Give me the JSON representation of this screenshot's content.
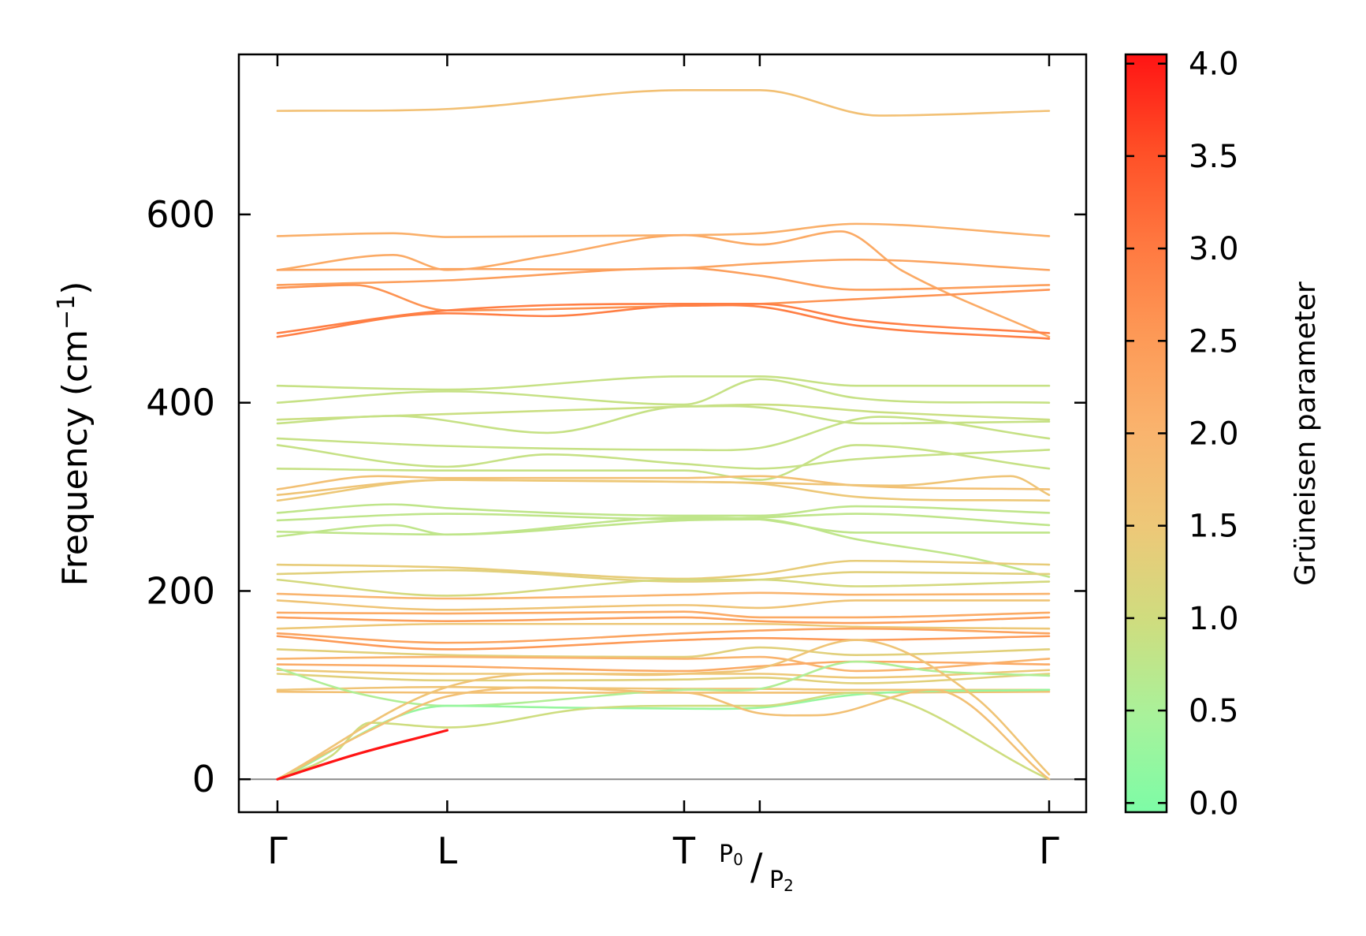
{
  "chart_data": {
    "type": "line",
    "title": "",
    "xlabel": "",
    "ylabel": "Frequency (cm",
    "ylabel_superscript": "−1",
    "ylabel_close": ")",
    "ylim": [
      -35,
      770
    ],
    "yticks": [
      0,
      200,
      400,
      600
    ],
    "x_range": [
      0,
      1
    ],
    "high_symmetry_points": [
      {
        "label": "Γ",
        "x": 0.0
      },
      {
        "label": "L",
        "x": 0.22
      },
      {
        "label": "T",
        "x": 0.527
      },
      {
        "label": "",
        "x": 0.625,
        "split_label": {
          "top": "P",
          "top_index": "0",
          "sep": "/",
          "bottom": "P",
          "bottom_index": "2"
        }
      },
      {
        "label": "Γ",
        "x": 1.0
      }
    ],
    "zero_line": 0,
    "colorbar": {
      "label": "Grüneisen parameter",
      "range": [
        -0.05,
        4.05
      ],
      "ticks": [
        0.0,
        0.5,
        1.0,
        1.5,
        2.0,
        2.5,
        3.0,
        3.5,
        4.0
      ],
      "tick_labels": [
        "0.0",
        "0.5",
        "1.0",
        "1.5",
        "2.0",
        "2.5",
        "3.0",
        "3.5",
        "4.0"
      ],
      "colormap": [
        "#7dfca6",
        "#a8f29b",
        "#cedd7f",
        "#edc878",
        "#f9b46e",
        "#fd9a57",
        "#ff7840",
        "#ff4e26",
        "#ff1414"
      ]
    },
    "series": [
      {
        "x": [
          0,
          0.22,
          0.527,
          0.625,
          0.78,
          1
        ],
        "y": [
          710,
          712,
          732,
          732,
          705,
          710
        ],
        "gamma": 1.7
      },
      {
        "x": [
          0,
          0.15,
          0.22,
          0.527,
          0.625,
          0.75,
          1
        ],
        "y": [
          577,
          580,
          576,
          578,
          580,
          590,
          577
        ],
        "gamma": 2.1
      },
      {
        "x": [
          0,
          0.15,
          0.22,
          0.35,
          0.527,
          0.625,
          0.73,
          0.81,
          1
        ],
        "y": [
          541,
          557,
          541,
          556,
          578,
          568,
          582,
          540,
          470
        ],
        "gamma": 2.2
      },
      {
        "x": [
          0,
          0.22,
          0.527,
          0.625,
          0.75,
          1
        ],
        "y": [
          541,
          542,
          543,
          548,
          552,
          541
        ],
        "gamma": 2.3
      },
      {
        "x": [
          0,
          0.22,
          0.527,
          0.625,
          0.75,
          1
        ],
        "y": [
          525,
          530,
          543,
          535,
          520,
          525
        ],
        "gamma": 2.4
      },
      {
        "x": [
          0,
          0.1,
          0.22,
          0.527,
          0.625,
          0.75,
          1
        ],
        "y": [
          522,
          525,
          498,
          503,
          505,
          510,
          520
        ],
        "gamma": 2.6
      },
      {
        "x": [
          0,
          0.22,
          0.527,
          0.625,
          0.75,
          1
        ],
        "y": [
          474,
          498,
          505,
          505,
          488,
          474
        ],
        "gamma": 2.9
      },
      {
        "x": [
          0,
          0.22,
          0.35,
          0.527,
          0.625,
          0.75,
          1
        ],
        "y": [
          470,
          495,
          492,
          503,
          502,
          482,
          468
        ],
        "gamma": 2.9
      },
      {
        "x": [
          0,
          0.22,
          0.527,
          0.625,
          0.75,
          1
        ],
        "y": [
          418,
          414,
          428,
          428,
          418,
          418
        ],
        "gamma": 0.9
      },
      {
        "x": [
          0,
          0.22,
          0.527,
          0.625,
          0.75,
          1
        ],
        "y": [
          400,
          412,
          398,
          425,
          405,
          400
        ],
        "gamma": 0.9
      },
      {
        "x": [
          0,
          0.22,
          0.527,
          0.625,
          0.78,
          1
        ],
        "y": [
          382,
          388,
          396,
          398,
          390,
          382
        ],
        "gamma": 0.95
      },
      {
        "x": [
          0,
          0.15,
          0.35,
          0.527,
          0.625,
          0.76,
          1
        ],
        "y": [
          378,
          386,
          368,
          396,
          395,
          378,
          380
        ],
        "gamma": 0.9
      },
      {
        "x": [
          0,
          0.22,
          0.527,
          0.625,
          0.78,
          1
        ],
        "y": [
          362,
          354,
          350,
          352,
          385,
          362
        ],
        "gamma": 0.9
      },
      {
        "x": [
          0,
          0.22,
          0.35,
          0.527,
          0.625,
          0.75,
          1
        ],
        "y": [
          355,
          332,
          345,
          335,
          330,
          340,
          350
        ],
        "gamma": 0.9
      },
      {
        "x": [
          0,
          0.22,
          0.527,
          0.625,
          0.75,
          1
        ],
        "y": [
          330,
          328,
          328,
          318,
          355,
          330
        ],
        "gamma": 0.9
      },
      {
        "x": [
          0,
          0.13,
          0.22,
          0.527,
          0.625,
          0.75,
          1
        ],
        "y": [
          308,
          322,
          320,
          320,
          322,
          312,
          308
        ],
        "gamma": 1.7
      },
      {
        "x": [
          0,
          0.22,
          0.527,
          0.625,
          0.8,
          0.95,
          1
        ],
        "y": [
          302,
          318,
          316,
          315,
          312,
          322,
          302
        ],
        "gamma": 1.6
      },
      {
        "x": [
          0,
          0.22,
          0.527,
          0.625,
          0.75,
          1
        ],
        "y": [
          296,
          318,
          316,
          314,
          300,
          296
        ],
        "gamma": 1.5
      },
      {
        "x": [
          0,
          0.15,
          0.22,
          0.527,
          0.625,
          0.75,
          1
        ],
        "y": [
          283,
          292,
          288,
          280,
          280,
          290,
          283
        ],
        "gamma": 0.8
      },
      {
        "x": [
          0,
          0.22,
          0.527,
          0.625,
          0.75,
          1
        ],
        "y": [
          275,
          282,
          276,
          278,
          282,
          270
        ],
        "gamma": 0.8
      },
      {
        "x": [
          0,
          0.22,
          0.527,
          0.625,
          0.75,
          1
        ],
        "y": [
          263,
          260,
          278,
          276,
          262,
          262
        ],
        "gamma": 0.8
      },
      {
        "x": [
          0,
          0.15,
          0.22,
          0.527,
          0.625,
          0.75,
          0.9,
          1
        ],
        "y": [
          258,
          270,
          260,
          275,
          276,
          255,
          235,
          215
        ],
        "gamma": 0.8
      },
      {
        "x": [
          0,
          0.22,
          0.527,
          0.625,
          0.75,
          1
        ],
        "y": [
          228,
          225,
          213,
          218,
          232,
          228
        ],
        "gamma": 1.4
      },
      {
        "x": [
          0,
          0.22,
          0.527,
          0.625,
          0.75,
          1
        ],
        "y": [
          218,
          222,
          210,
          212,
          220,
          218
        ],
        "gamma": 1.3
      },
      {
        "x": [
          0,
          0.22,
          0.527,
          0.625,
          0.75,
          1
        ],
        "y": [
          212,
          195,
          212,
          212,
          205,
          210
        ],
        "gamma": 1.1
      },
      {
        "x": [
          0,
          0.22,
          0.527,
          0.625,
          0.75,
          1
        ],
        "y": [
          197,
          192,
          196,
          198,
          196,
          197
        ],
        "gamma": 2.0
      },
      {
        "x": [
          0,
          0.22,
          0.527,
          0.625,
          0.75,
          1
        ],
        "y": [
          190,
          180,
          185,
          182,
          190,
          190
        ],
        "gamma": 1.6
      },
      {
        "x": [
          0,
          0.22,
          0.527,
          0.625,
          0.75,
          1
        ],
        "y": [
          177,
          176,
          178,
          172,
          172,
          177
        ],
        "gamma": 2.2
      },
      {
        "x": [
          0,
          0.22,
          0.527,
          0.625,
          0.75,
          1
        ],
        "y": [
          172,
          168,
          172,
          168,
          166,
          172
        ],
        "gamma": 2.4
      },
      {
        "x": [
          0,
          0.22,
          0.527,
          0.625,
          0.75,
          1
        ],
        "y": [
          160,
          165,
          165,
          165,
          162,
          160
        ],
        "gamma": 1.5
      },
      {
        "x": [
          0,
          0.22,
          0.527,
          0.625,
          0.75,
          1
        ],
        "y": [
          155,
          145,
          155,
          158,
          160,
          155
        ],
        "gamma": 2.3
      },
      {
        "x": [
          0,
          0.22,
          0.527,
          0.625,
          0.75,
          1
        ],
        "y": [
          152,
          138,
          148,
          150,
          148,
          152
        ],
        "gamma": 2.5
      },
      {
        "x": [
          0,
          0.22,
          0.527,
          0.625,
          0.75,
          1
        ],
        "y": [
          138,
          132,
          130,
          140,
          132,
          138
        ],
        "gamma": 1.3
      },
      {
        "x": [
          0,
          0.22,
          0.527,
          0.625,
          0.75,
          1
        ],
        "y": [
          128,
          130,
          128,
          130,
          115,
          128
        ],
        "gamma": 2.0
      },
      {
        "x": [
          0,
          0.22,
          0.527,
          0.625,
          0.75,
          1
        ],
        "y": [
          122,
          120,
          115,
          120,
          125,
          122
        ],
        "gamma": 2.2
      },
      {
        "x": [
          0,
          0.22,
          0.527,
          0.625,
          0.75,
          1
        ],
        "y": [
          116,
          112,
          112,
          112,
          108,
          116
        ],
        "gamma": 1.5
      },
      {
        "x": [
          0,
          0.22,
          0.527,
          0.625,
          0.75,
          1
        ],
        "y": [
          112,
          105,
          106,
          108,
          102,
          112
        ],
        "gamma": 1.3
      },
      {
        "x": [
          0,
          0.22,
          0.527,
          0.625,
          0.75,
          1
        ],
        "y": [
          95,
          98,
          96,
          96,
          95,
          95
        ],
        "gamma": 1.6
      },
      {
        "x": [
          0,
          0.22,
          0.527,
          0.625,
          0.75,
          1
        ],
        "y": [
          93,
          92,
          92,
          92,
          92,
          93
        ],
        "gamma": 1.7
      },
      {
        "x": [
          0,
          0.1,
          0.22,
          0.527,
          0.625,
          0.75,
          0.85,
          1
        ],
        "y": [
          118,
          92,
          78,
          95,
          96,
          125,
          115,
          110
        ],
        "gamma": 0.6
      },
      {
        "x": [
          0,
          0.22,
          0.38,
          0.527,
          0.625,
          0.75,
          1
        ],
        "y": [
          0,
          78,
          76,
          75,
          76,
          90,
          95
        ],
        "gamma": 0.3
      },
      {
        "x": [
          0,
          0.07,
          0.12,
          0.22,
          0.4,
          0.527,
          0.625,
          0.75,
          1
        ],
        "y": [
          0,
          25,
          60,
          55,
          75,
          78,
          78,
          92,
          0
        ],
        "gamma": 1.0
      },
      {
        "x": [
          0,
          0.12,
          0.22,
          0.527,
          0.625,
          0.7,
          0.85,
          1
        ],
        "y": [
          0,
          52,
          88,
          92,
          70,
          68,
          95,
          0
        ],
        "gamma": 1.7
      },
      {
        "x": [
          0,
          0.22,
          0.527,
          0.625,
          0.75,
          0.9,
          1
        ],
        "y": [
          0,
          98,
          112,
          118,
          148,
          90,
          5
        ],
        "gamma": 1.6
      },
      {
        "x": [
          0,
          0.1,
          0.22
        ],
        "y": [
          0,
          26,
          52
        ],
        "gamma": 4.0
      }
    ]
  }
}
